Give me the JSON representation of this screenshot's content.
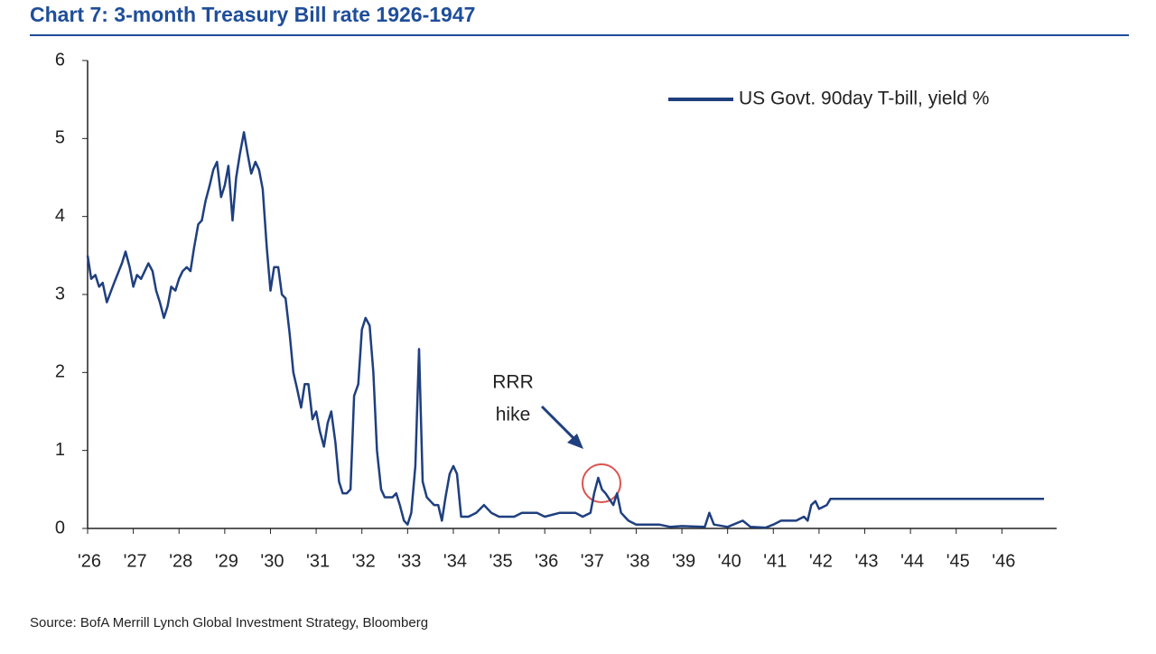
{
  "chart_data": {
    "type": "line",
    "title": "Chart 7: 3-month Treasury Bill rate 1926-1947",
    "source": "Source: BofA Merrill Lynch Global Investment Strategy, Bloomberg",
    "annotation": [
      "RRR",
      "hike"
    ],
    "legend": "upper right",
    "grid": false,
    "xlim": [
      1926,
      1947
    ],
    "ylim": [
      0,
      6
    ],
    "yticks": [
      0,
      1,
      2,
      3,
      4,
      5,
      6
    ],
    "xticks": [
      {
        "value": 1926,
        "label": "'26"
      },
      {
        "value": 1927,
        "label": "'27"
      },
      {
        "value": 1928,
        "label": "'28"
      },
      {
        "value": 1929,
        "label": "'29"
      },
      {
        "value": 1930,
        "label": "'30"
      },
      {
        "value": 1931,
        "label": "'31"
      },
      {
        "value": 1932,
        "label": "'32"
      },
      {
        "value": 1933,
        "label": "'33"
      },
      {
        "value": 1934,
        "label": "'34"
      },
      {
        "value": 1935,
        "label": "'35"
      },
      {
        "value": 1936,
        "label": "'36"
      },
      {
        "value": 1937,
        "label": "'37"
      },
      {
        "value": 1938,
        "label": "'38"
      },
      {
        "value": 1939,
        "label": "'39"
      },
      {
        "value": 1940,
        "label": "'40"
      },
      {
        "value": 1941,
        "label": "'41"
      },
      {
        "value": 1942,
        "label": "'42"
      },
      {
        "value": 1943,
        "label": "'43"
      },
      {
        "value": 1944,
        "label": "'44"
      },
      {
        "value": 1945,
        "label": "'45"
      },
      {
        "value": 1946,
        "label": "'46"
      }
    ],
    "x": [
      1926.0,
      1926.08,
      1926.17,
      1926.25,
      1926.33,
      1926.42,
      1926.58,
      1926.75,
      1926.83,
      1926.92,
      1927.0,
      1927.08,
      1927.17,
      1927.25,
      1927.33,
      1927.42,
      1927.5,
      1927.58,
      1927.67,
      1927.75,
      1927.83,
      1927.92,
      1928.0,
      1928.08,
      1928.17,
      1928.25,
      1928.33,
      1928.42,
      1928.5,
      1928.58,
      1928.67,
      1928.75,
      1928.83,
      1928.92,
      1929.0,
      1929.08,
      1929.17,
      1929.25,
      1929.33,
      1929.42,
      1929.5,
      1929.58,
      1929.67,
      1929.75,
      1929.83,
      1929.92,
      1930.0,
      1930.08,
      1930.17,
      1930.25,
      1930.33,
      1930.42,
      1930.5,
      1930.58,
      1930.67,
      1930.75,
      1930.83,
      1930.92,
      1931.0,
      1931.08,
      1931.17,
      1931.25,
      1931.33,
      1931.42,
      1931.5,
      1931.58,
      1931.67,
      1931.75,
      1931.83,
      1931.92,
      1932.0,
      1932.08,
      1932.17,
      1932.25,
      1932.33,
      1932.42,
      1932.5,
      1932.67,
      1932.75,
      1932.83,
      1932.92,
      1933.0,
      1933.08,
      1933.17,
      1933.25,
      1933.33,
      1933.42,
      1933.5,
      1933.58,
      1933.67,
      1933.75,
      1933.83,
      1933.92,
      1934.0,
      1934.08,
      1934.17,
      1934.33,
      1934.5,
      1934.67,
      1934.83,
      1935.0,
      1935.33,
      1935.5,
      1935.83,
      1936.0,
      1936.33,
      1936.67,
      1936.83,
      1937.0,
      1937.08,
      1937.17,
      1937.25,
      1937.33,
      1937.5,
      1937.58,
      1937.67,
      1937.83,
      1938.0,
      1938.25,
      1938.5,
      1938.75,
      1939.0,
      1939.5,
      1939.6,
      1939.7,
      1940.0,
      1940.33,
      1940.5,
      1940.83,
      1941.0,
      1941.17,
      1941.5,
      1941.67,
      1941.75,
      1941.83,
      1941.92,
      1942.0,
      1942.17,
      1942.25,
      1946.92
    ],
    "series": [
      {
        "name": "US Govt. 90day T-bill, yield %",
        "color": "#1f3f7f",
        "values": [
          3.5,
          3.2,
          3.25,
          3.1,
          3.15,
          2.9,
          3.15,
          3.4,
          3.55,
          3.35,
          3.1,
          3.25,
          3.2,
          3.3,
          3.4,
          3.3,
          3.05,
          2.9,
          2.7,
          2.85,
          3.1,
          3.05,
          3.2,
          3.3,
          3.35,
          3.3,
          3.6,
          3.9,
          3.95,
          4.2,
          4.4,
          4.6,
          4.7,
          4.25,
          4.4,
          4.65,
          3.95,
          4.5,
          4.8,
          5.08,
          4.8,
          4.55,
          4.7,
          4.6,
          4.35,
          3.6,
          3.05,
          3.35,
          3.35,
          3.0,
          2.95,
          2.5,
          2.0,
          1.8,
          1.55,
          1.85,
          1.85,
          1.4,
          1.5,
          1.25,
          1.05,
          1.35,
          1.5,
          1.1,
          0.6,
          0.45,
          0.45,
          0.5,
          1.7,
          1.85,
          2.55,
          2.7,
          2.6,
          2.0,
          1.0,
          0.5,
          0.4,
          0.4,
          0.45,
          0.3,
          0.1,
          0.05,
          0.2,
          0.8,
          2.3,
          0.6,
          0.4,
          0.35,
          0.3,
          0.3,
          0.1,
          0.4,
          0.7,
          0.8,
          0.7,
          0.15,
          0.15,
          0.2,
          0.3,
          0.2,
          0.15,
          0.15,
          0.2,
          0.2,
          0.15,
          0.2,
          0.2,
          0.15,
          0.2,
          0.45,
          0.65,
          0.5,
          0.45,
          0.3,
          0.45,
          0.2,
          0.1,
          0.05,
          0.05,
          0.05,
          0.02,
          0.03,
          0.02,
          0.2,
          0.05,
          0.02,
          0.1,
          0.02,
          0.01,
          0.05,
          0.1,
          0.1,
          0.15,
          0.1,
          0.3,
          0.35,
          0.25,
          0.3,
          0.38,
          0.38
        ]
      }
    ]
  }
}
